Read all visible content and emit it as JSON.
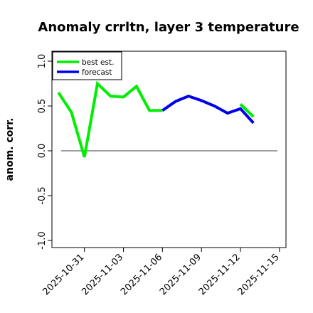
{
  "chart_data": {
    "type": "line",
    "title": "Anomaly crrltn, layer 3 temperature",
    "xlabel": "",
    "ylabel": "anom. corr.",
    "ylim": [
      -1.0,
      1.0
    ],
    "y_ticks": [
      "-1.0",
      "-0.5",
      "0.0",
      "0.5",
      "1.0"
    ],
    "y_tick_values": [
      -1.0,
      -0.5,
      0.0,
      0.5,
      1.0
    ],
    "x_ticks": [
      "2025-10-31",
      "2025-11-03",
      "2025-11-06",
      "2025-11-09",
      "2025-11-12",
      "2025-11-15"
    ],
    "x_tick_values": [
      "2025-10-31",
      "2025-11-03",
      "2025-11-06",
      "2025-11-09",
      "2025-11-12",
      "2025-11-15"
    ],
    "highlighted_tick": "2025-11-06",
    "xlim": [
      "2025-10-28T12:00",
      "2025-11-15T12:00"
    ],
    "legend": {
      "placement": "top-left",
      "entries": [
        "best est.",
        "forecast"
      ]
    },
    "reference_line": 0.0,
    "series": [
      {
        "name": "best est.",
        "color": "#00ee00",
        "x": [
          "2025-10-29",
          "2025-10-30",
          "2025-10-31",
          "2025-11-01",
          "2025-11-02",
          "2025-11-03",
          "2025-11-04",
          "2025-11-05",
          "2025-11-06"
        ],
        "values": [
          0.65,
          0.43,
          -0.07,
          0.75,
          0.61,
          0.6,
          0.72,
          0.45,
          0.45
        ]
      },
      {
        "name": "best est. (continued)",
        "color": "#00ee00",
        "x": [
          "2025-11-12",
          "2025-11-13"
        ],
        "values": [
          0.52,
          0.38
        ]
      },
      {
        "name": "forecast",
        "color": "#0000ee",
        "x": [
          "2025-11-06",
          "2025-11-07",
          "2025-11-08",
          "2025-11-09",
          "2025-11-10",
          "2025-11-11",
          "2025-11-12",
          "2025-11-13"
        ],
        "values": [
          0.45,
          0.55,
          0.61,
          0.56,
          0.5,
          0.42,
          0.47,
          0.31
        ]
      }
    ],
    "colors": {
      "axis": "#000000",
      "reference": "#666666",
      "highlight_tick": "#228b22"
    }
  }
}
